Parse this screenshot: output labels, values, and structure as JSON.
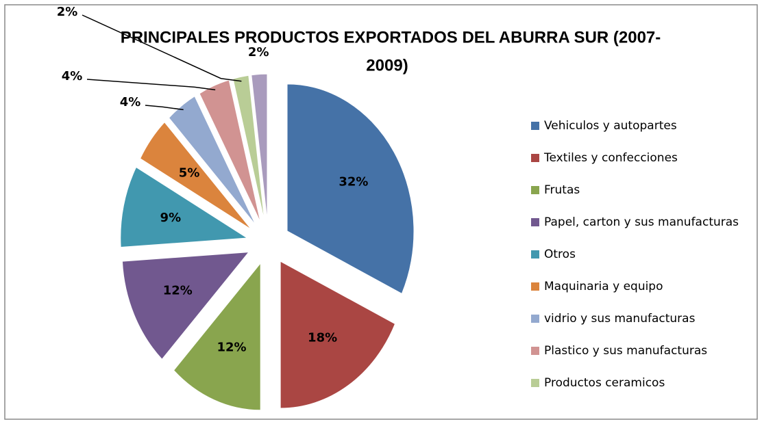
{
  "chart_data": {
    "type": "pie",
    "title": [
      "PRINCIPALES PRODUCTOS  EXPORTADOS DEL ABURRA SUR (2007-",
      "2009)"
    ],
    "categories": [
      "Vehiculos y autopartes",
      "Textiles y confecciones",
      "Frutas",
      "Papel, carton y sus manufacturas",
      "Otros",
      "Maquinaria y equipo",
      "vidrio y sus manufacturas",
      "Plastico y sus manufacturas",
      "Productos ceramicos",
      null
    ],
    "values": [
      32,
      18,
      12,
      12,
      9,
      5,
      4,
      4,
      2,
      2
    ],
    "value_labels": [
      "32%",
      "18%",
      "12%",
      "12%",
      "9%",
      "5%",
      "4%",
      "4%",
      "2%",
      "2%"
    ],
    "colors": [
      "#4572a7",
      "#aa4643",
      "#89a54e",
      "#71588f",
      "#4198af",
      "#db843d",
      "#93a9cf",
      "#d19392",
      "#b9cd96",
      "#a99bbd"
    ],
    "legend": "right"
  }
}
